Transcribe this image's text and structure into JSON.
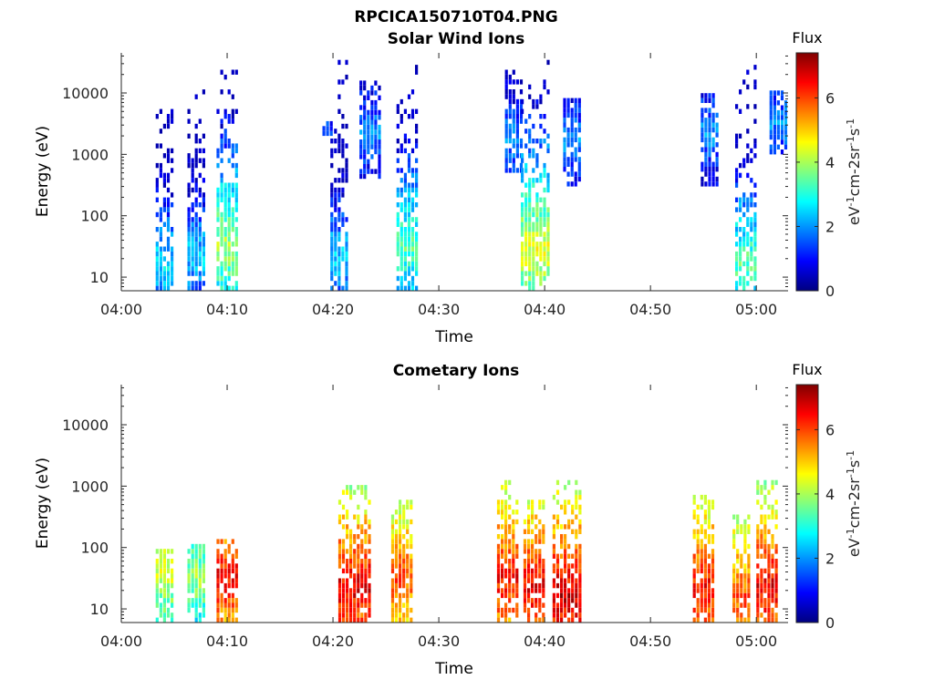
{
  "figure_title": "RPCICA150710T04.PNG",
  "colors": {
    "axis": "#262626",
    "background": "#ffffff",
    "colormap": [
      "#000080",
      "#0000ff",
      "#0080ff",
      "#00ffff",
      "#80ff80",
      "#ffff00",
      "#ff8000",
      "#ff0000",
      "#800000"
    ]
  },
  "chart_data": [
    {
      "type": "heatmap",
      "title": "Solar Wind Ions",
      "xlabel": "Time",
      "ylabel": "Energy (eV)",
      "xlim": [
        "04:00",
        "05:03"
      ],
      "xticks": [
        "04:00",
        "04:10",
        "04:20",
        "04:30",
        "04:40",
        "04:50",
        "05:00"
      ],
      "ylim": [
        6,
        45000
      ],
      "yscale": "log",
      "yticks": [
        10,
        100,
        1000,
        10000
      ],
      "colorbar": {
        "title": "Flux",
        "label": "eV-1cm-2sr-1s-1",
        "range": [
          0,
          7.4
        ],
        "ticks": [
          0,
          2,
          4,
          6
        ]
      },
      "bursts": [
        {
          "t": "04:04",
          "width_min": 1.5,
          "emax": 11000,
          "emin": 6,
          "peak_flux": 3.2,
          "core_e": 15
        },
        {
          "t": "04:07",
          "width_min": 1.5,
          "emax": 11000,
          "emin": 6,
          "peak_flux": 3.0,
          "core_e": 20
        },
        {
          "t": "04:10",
          "width_min": 2.0,
          "emax": 30000,
          "emin": 6,
          "peak_flux": 4.5,
          "core_e": 30
        },
        {
          "t": "04:19.5",
          "width_min": 1.0,
          "emax": 3000,
          "emin": 2000,
          "peak_flux": 2.0,
          "core_e": 2000
        },
        {
          "t": "04:20.5",
          "width_min": 1.5,
          "emax": 32000,
          "emin": 6,
          "peak_flux": 3.0,
          "core_e": 20
        },
        {
          "t": "04:23.5",
          "width_min": 2.0,
          "emax": 15000,
          "emin": 400,
          "peak_flux": 2.5,
          "core_e": 2000
        },
        {
          "t": "04:27",
          "width_min": 2.0,
          "emax": 25000,
          "emin": 6,
          "peak_flux": 4.0,
          "core_e": 30
        },
        {
          "t": "04:37",
          "width_min": 1.5,
          "emax": 20000,
          "emin": 500,
          "peak_flux": 2.5,
          "core_e": 1500
        },
        {
          "t": "04:39",
          "width_min": 2.5,
          "emax": 30000,
          "emin": 6,
          "peak_flux": 5.0,
          "core_e": 25
        },
        {
          "t": "04:42.5",
          "width_min": 1.5,
          "emax": 7000,
          "emin": 300,
          "peak_flux": 2.5,
          "core_e": 1500
        },
        {
          "t": "04:55.5",
          "width_min": 1.5,
          "emax": 9000,
          "emin": 300,
          "peak_flux": 2.5,
          "core_e": 2000
        },
        {
          "t": "04:59",
          "width_min": 2.0,
          "emax": 25000,
          "emin": 6,
          "peak_flux": 4.0,
          "core_e": 15
        },
        {
          "t": "05:02",
          "width_min": 1.5,
          "emax": 10000,
          "emin": 1000,
          "peak_flux": 2.5,
          "core_e": 3000
        }
      ]
    },
    {
      "type": "heatmap",
      "title": "Cometary Ions",
      "xlabel": "Time",
      "ylabel": "Energy (eV)",
      "xlim": [
        "04:00",
        "05:03"
      ],
      "xticks": [
        "04:00",
        "04:10",
        "04:20",
        "04:30",
        "04:40",
        "04:50",
        "05:00"
      ],
      "ylim": [
        6,
        45000
      ],
      "yscale": "log",
      "yticks": [
        10,
        100,
        1000,
        10000
      ],
      "colorbar": {
        "title": "Flux",
        "label": "eV-1cm-2sr-1s-1",
        "range": [
          0,
          7.4
        ],
        "ticks": [
          0,
          2,
          4,
          6
        ]
      },
      "bursts": [
        {
          "t": "04:04",
          "width_min": 1.5,
          "emax": 90,
          "emin": 6,
          "peak_flux": 5.0,
          "core_e": 40
        },
        {
          "t": "04:07",
          "width_min": 1.5,
          "emax": 100,
          "emin": 6,
          "peak_flux": 4.5,
          "core_e": 30
        },
        {
          "t": "04:10",
          "width_min": 2.0,
          "emax": 130,
          "emin": 6,
          "peak_flux": 7.0,
          "core_e": 30
        },
        {
          "t": "04:22",
          "width_min": 3.0,
          "emax": 1000,
          "emin": 6,
          "peak_flux": 7.2,
          "core_e": 20
        },
        {
          "t": "04:26.5",
          "width_min": 2.0,
          "emax": 500,
          "emin": 6,
          "peak_flux": 6.5,
          "core_e": 30
        },
        {
          "t": "04:36.5",
          "width_min": 2.0,
          "emax": 1200,
          "emin": 6,
          "peak_flux": 7.0,
          "core_e": 30
        },
        {
          "t": "04:39",
          "width_min": 2.0,
          "emax": 500,
          "emin": 6,
          "peak_flux": 7.2,
          "core_e": 20
        },
        {
          "t": "04:42",
          "width_min": 2.5,
          "emax": 1200,
          "emin": 6,
          "peak_flux": 7.4,
          "core_e": 15
        },
        {
          "t": "04:55",
          "width_min": 2.0,
          "emax": 700,
          "emin": 6,
          "peak_flux": 7.0,
          "core_e": 20
        },
        {
          "t": "04:58.5",
          "width_min": 1.5,
          "emax": 300,
          "emin": 6,
          "peak_flux": 6.5,
          "core_e": 15
        },
        {
          "t": "05:01",
          "width_min": 2.0,
          "emax": 1200,
          "emin": 6,
          "peak_flux": 7.2,
          "core_e": 20
        }
      ]
    }
  ]
}
